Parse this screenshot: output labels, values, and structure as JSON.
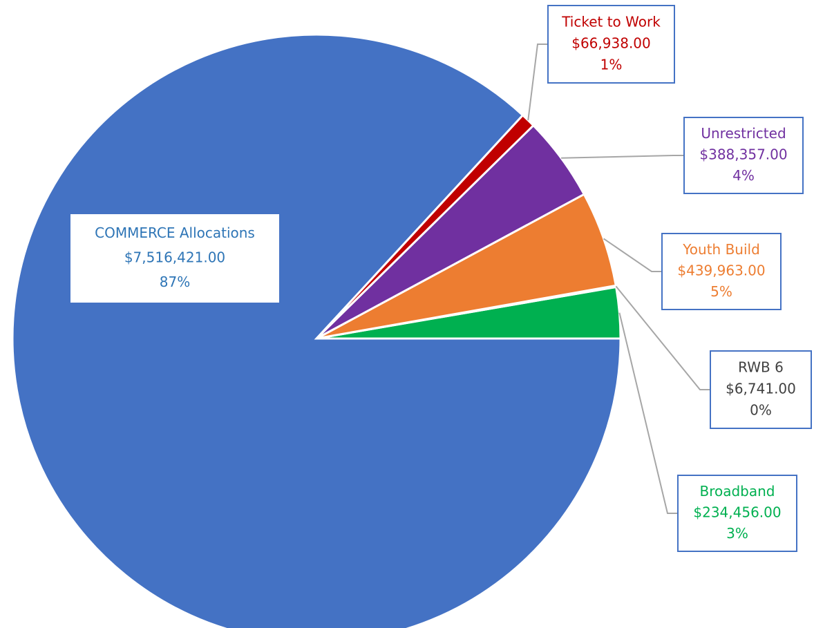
{
  "chart_data": {
    "type": "pie",
    "categories": [
      "Broadband",
      "RWB 6",
      "Youth Build",
      "Unrestricted",
      "Ticket to Work",
      "COMMERCE Allocations"
    ],
    "values": [
      234456,
      6741,
      439963,
      388357,
      66938,
      7516421
    ],
    "value_labels": [
      "$234,456.00",
      "$6,741.00",
      "$439,963.00",
      "$388,357.00",
      "$66,938.00",
      "$7,516,421.00"
    ],
    "percent_labels": [
      "3%",
      "0%",
      "5%",
      "4%",
      "1%",
      "87%"
    ],
    "colors": [
      "#00b050",
      "#7f7f7f",
      "#ed7d31",
      "#7030a0",
      "#c00000",
      "#4472c4"
    ],
    "label_colors": [
      "#00b050",
      "#404040",
      "#ed7d31",
      "#7030a0",
      "#c00000",
      "#2e75b6"
    ]
  }
}
